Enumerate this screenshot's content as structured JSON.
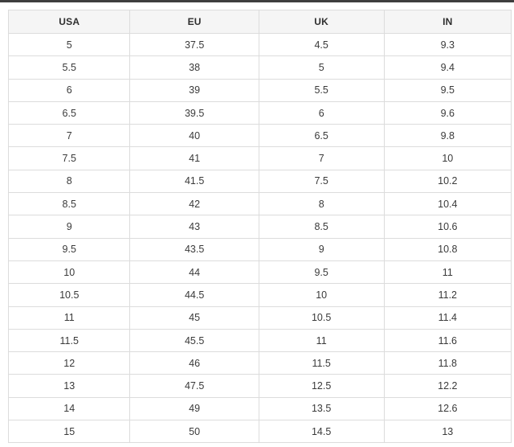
{
  "top_bar": {
    "color": "#3e3e3e"
  },
  "colors": {
    "header_background": "#f5f5f5",
    "cell_border": "#dcdcdc",
    "header_text": "#2f2f2f",
    "cell_text": "#3a3a3a",
    "page_background": "#ffffff"
  },
  "chart_data": {
    "type": "table",
    "title": "",
    "columns": [
      "USA",
      "EU",
      "UK",
      "IN"
    ],
    "rows": [
      [
        "5",
        "37.5",
        "4.5",
        "9.3"
      ],
      [
        "5.5",
        "38",
        "5",
        "9.4"
      ],
      [
        "6",
        "39",
        "5.5",
        "9.5"
      ],
      [
        "6.5",
        "39.5",
        "6",
        "9.6"
      ],
      [
        "7",
        "40",
        "6.5",
        "9.8"
      ],
      [
        "7.5",
        "41",
        "7",
        "10"
      ],
      [
        "8",
        "41.5",
        "7.5",
        "10.2"
      ],
      [
        "8.5",
        "42",
        "8",
        "10.4"
      ],
      [
        "9",
        "43",
        "8.5",
        "10.6"
      ],
      [
        "9.5",
        "43.5",
        "9",
        "10.8"
      ],
      [
        "10",
        "44",
        "9.5",
        "11"
      ],
      [
        "10.5",
        "44.5",
        "10",
        "11.2"
      ],
      [
        "11",
        "45",
        "10.5",
        "11.4"
      ],
      [
        "11.5",
        "45.5",
        "11",
        "11.6"
      ],
      [
        "12",
        "46",
        "11.5",
        "11.8"
      ],
      [
        "13",
        "47.5",
        "12.5",
        "12.2"
      ],
      [
        "14",
        "49",
        "13.5",
        "12.6"
      ],
      [
        "15",
        "50",
        "14.5",
        "13"
      ]
    ]
  }
}
